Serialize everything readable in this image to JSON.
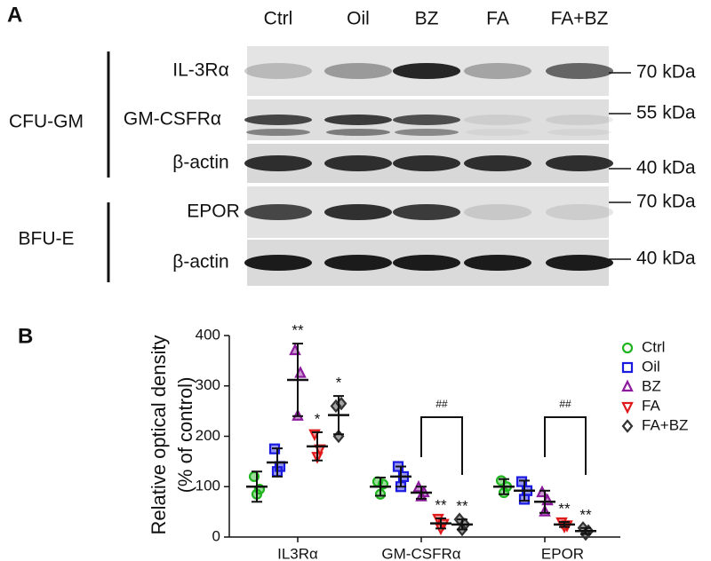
{
  "panel_a": {
    "label": "A",
    "lanes": [
      "Ctrl",
      "Oil",
      "BZ",
      "FA",
      "FA+BZ"
    ],
    "groups": [
      "CFU-GM",
      "BFU-E"
    ],
    "rows": [
      {
        "label": "IL-3Rα",
        "marker": "70 kDa"
      },
      {
        "label": "GM-CSFRα",
        "marker": "55 kDa"
      },
      {
        "label": "β-actin",
        "marker": "40 kDa"
      },
      {
        "label": "EPOR",
        "marker": "70 kDa"
      },
      {
        "label": "β-actin",
        "marker": "40 kDa"
      }
    ]
  },
  "chart_data": {
    "type": "dot",
    "panel_label": "B",
    "ylabel": [
      "Relative optical density",
      "(% of control)"
    ],
    "categories": [
      "IL3Rα",
      "GM-CSFRα",
      "EPOR"
    ],
    "ylim": [
      0,
      400
    ],
    "yticks": [
      0,
      100,
      200,
      300,
      400
    ],
    "bracket_labels": [
      null,
      "##",
      "##"
    ],
    "series": [
      {
        "name": "Ctrl",
        "color": "#1fb51f",
        "marker": "circle",
        "values": [
          100,
          100,
          100
        ],
        "errors": [
          30,
          18,
          15
        ],
        "points": [
          [
            120,
            85,
            95
          ],
          [
            110,
            85,
            105
          ],
          [
            112,
            88,
            100
          ]
        ],
        "significance": [
          null,
          null,
          null
        ]
      },
      {
        "name": "Oil",
        "color": "#1a1ae0",
        "marker": "square",
        "values": [
          148,
          120,
          92
        ],
        "errors": [
          28,
          20,
          20
        ],
        "points": [
          [
            175,
            130,
            140
          ],
          [
            140,
            100,
            120
          ],
          [
            110,
            75,
            92
          ]
        ],
        "significance": [
          null,
          null,
          null
        ]
      },
      {
        "name": "BZ",
        "color": "#8b1a9c",
        "marker": "triangle",
        "values": [
          312,
          88,
          70
        ],
        "errors": [
          72,
          12,
          22
        ],
        "points": [
          [
            370,
            240,
            325
          ],
          [
            98,
            80,
            88
          ],
          [
            88,
            50,
            72
          ]
        ],
        "significance": [
          "**",
          null,
          null
        ]
      },
      {
        "name": "FA",
        "color": "#e01a1a",
        "marker": "triangle-down",
        "values": [
          180,
          27,
          25
        ],
        "errors": [
          28,
          10,
          5
        ],
        "points": [
          [
            205,
            160,
            175
          ],
          [
            37,
            18,
            27
          ],
          [
            30,
            22,
            24
          ]
        ],
        "significance": [
          "*",
          "**",
          "**"
        ]
      },
      {
        "name": "FA+BZ",
        "color": "#333333",
        "marker": "diamond",
        "values": [
          242,
          25,
          12
        ],
        "errors": [
          38,
          10,
          6
        ],
        "points": [
          [
            260,
            200,
            265
          ],
          [
            35,
            15,
            25
          ],
          [
            18,
            6,
            12
          ]
        ],
        "significance": [
          "*",
          "**",
          "**"
        ]
      }
    ]
  }
}
